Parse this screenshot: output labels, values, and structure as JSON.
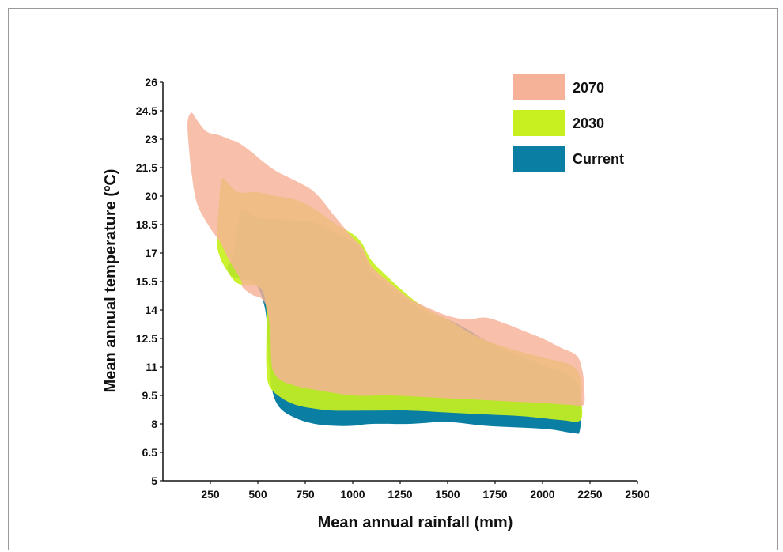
{
  "chart_data": {
    "type": "area",
    "title": "",
    "xlabel": "Mean annual rainfall (mm)",
    "ylabel": "Mean annual temperature (ºC)",
    "xlim": [
      0,
      2500
    ],
    "ylim": [
      5,
      26
    ],
    "x_ticks": [
      "250",
      "500",
      "750",
      "1000",
      "1250",
      "1500",
      "1750",
      "2000",
      "2250",
      "2500"
    ],
    "y_ticks": [
      "5",
      "6.5",
      "8",
      "9.5",
      "11",
      "12.5",
      "14",
      "15.5",
      "17",
      "18.5",
      "20",
      "21.5",
      "23",
      "24.5",
      "26"
    ],
    "grid": false,
    "legend_position": "top-right",
    "series": [
      {
        "name": "Current",
        "color": "#0a7ea3",
        "opacity": 1,
        "polygon": [
          [
            370,
            16.8
          ],
          [
            390,
            18.3
          ],
          [
            420,
            19.3
          ],
          [
            470,
            19.0
          ],
          [
            530,
            18.8
          ],
          [
            600,
            18.8
          ],
          [
            700,
            18.7
          ],
          [
            800,
            18.6
          ],
          [
            900,
            18.1
          ],
          [
            1000,
            17.6
          ],
          [
            1050,
            17.1
          ],
          [
            1100,
            16.0
          ],
          [
            1200,
            15.2
          ],
          [
            1300,
            14.4
          ],
          [
            1400,
            13.8
          ],
          [
            1500,
            13.5
          ],
          [
            1600,
            13.0
          ],
          [
            1700,
            12.4
          ],
          [
            1850,
            11.7
          ],
          [
            2000,
            11.1
          ],
          [
            2150,
            10.5
          ],
          [
            2200,
            9.6
          ],
          [
            2205,
            8.6
          ],
          [
            2195,
            7.6
          ],
          [
            2170,
            7.5
          ],
          [
            2050,
            7.7
          ],
          [
            1900,
            7.8
          ],
          [
            1700,
            7.9
          ],
          [
            1500,
            8.1
          ],
          [
            1300,
            8.0
          ],
          [
            1100,
            8.0
          ],
          [
            1000,
            7.9
          ],
          [
            900,
            7.9
          ],
          [
            800,
            8.0
          ],
          [
            700,
            8.3
          ],
          [
            620,
            8.8
          ],
          [
            580,
            9.6
          ],
          [
            560,
            11.0
          ],
          [
            550,
            12.5
          ],
          [
            545,
            13.6
          ],
          [
            530,
            14.4
          ],
          [
            500,
            15.2
          ],
          [
            460,
            15.6
          ],
          [
            420,
            15.6
          ],
          [
            360,
            15.8
          ],
          [
            340,
            16.3
          ]
        ]
      },
      {
        "name": "2030",
        "color": "#c8f020",
        "opacity": 0.92,
        "polygon": [
          [
            285,
            17.6
          ],
          [
            295,
            19.5
          ],
          [
            310,
            20.9
          ],
          [
            350,
            20.6
          ],
          [
            400,
            20.2
          ],
          [
            500,
            20.2
          ],
          [
            600,
            20.0
          ],
          [
            700,
            19.8
          ],
          [
            800,
            19.3
          ],
          [
            900,
            18.6
          ],
          [
            1000,
            18.0
          ],
          [
            1050,
            17.5
          ],
          [
            1100,
            16.6
          ],
          [
            1200,
            15.6
          ],
          [
            1300,
            14.7
          ],
          [
            1400,
            14.0
          ],
          [
            1500,
            13.5
          ],
          [
            1600,
            12.9
          ],
          [
            1700,
            12.4
          ],
          [
            1850,
            11.9
          ],
          [
            2000,
            11.5
          ],
          [
            2150,
            11.1
          ],
          [
            2200,
            10.4
          ],
          [
            2205,
            9.3
          ],
          [
            2200,
            8.2
          ],
          [
            2100,
            8.2
          ],
          [
            1900,
            8.4
          ],
          [
            1700,
            8.5
          ],
          [
            1500,
            8.6
          ],
          [
            1300,
            8.7
          ],
          [
            1100,
            8.7
          ],
          [
            900,
            8.7
          ],
          [
            800,
            8.8
          ],
          [
            700,
            9.0
          ],
          [
            620,
            9.4
          ],
          [
            560,
            10.0
          ],
          [
            545,
            11.0
          ],
          [
            545,
            12.5
          ],
          [
            545,
            14.0
          ],
          [
            525,
            15.0
          ],
          [
            480,
            15.3
          ],
          [
            430,
            15.3
          ],
          [
            380,
            15.5
          ],
          [
            330,
            16.2
          ],
          [
            300,
            16.8
          ]
        ]
      },
      {
        "name": "2070",
        "color": "#f6b199",
        "opacity": 0.82,
        "polygon": [
          [
            130,
            23.9
          ],
          [
            150,
            24.4
          ],
          [
            180,
            24.0
          ],
          [
            230,
            23.4
          ],
          [
            300,
            23.2
          ],
          [
            350,
            23.0
          ],
          [
            400,
            22.8
          ],
          [
            470,
            22.3
          ],
          [
            530,
            21.8
          ],
          [
            600,
            21.3
          ],
          [
            700,
            20.8
          ],
          [
            800,
            20.2
          ],
          [
            900,
            19.0
          ],
          [
            950,
            18.4
          ],
          [
            1000,
            17.8
          ],
          [
            1050,
            17.3
          ],
          [
            1100,
            16.3
          ],
          [
            1200,
            15.4
          ],
          [
            1300,
            14.6
          ],
          [
            1400,
            14.1
          ],
          [
            1500,
            13.7
          ],
          [
            1600,
            13.5
          ],
          [
            1700,
            13.6
          ],
          [
            1800,
            13.3
          ],
          [
            1900,
            12.9
          ],
          [
            2000,
            12.5
          ],
          [
            2100,
            12.0
          ],
          [
            2180,
            11.6
          ],
          [
            2210,
            10.8
          ],
          [
            2220,
            9.8
          ],
          [
            2215,
            9.0
          ],
          [
            2150,
            9.0
          ],
          [
            2000,
            9.1
          ],
          [
            1800,
            9.2
          ],
          [
            1600,
            9.3
          ],
          [
            1400,
            9.4
          ],
          [
            1200,
            9.5
          ],
          [
            1000,
            9.5
          ],
          [
            800,
            9.8
          ],
          [
            700,
            10.0
          ],
          [
            620,
            10.3
          ],
          [
            580,
            10.8
          ],
          [
            570,
            11.5
          ],
          [
            565,
            12.8
          ],
          [
            550,
            14.0
          ],
          [
            520,
            14.6
          ],
          [
            470,
            14.8
          ],
          [
            420,
            15.2
          ],
          [
            410,
            15.6
          ],
          [
            350,
            16.6
          ],
          [
            300,
            17.6
          ],
          [
            250,
            18.3
          ],
          [
            180,
            19.6
          ],
          [
            150,
            21.3
          ],
          [
            135,
            22.8
          ]
        ]
      }
    ]
  }
}
